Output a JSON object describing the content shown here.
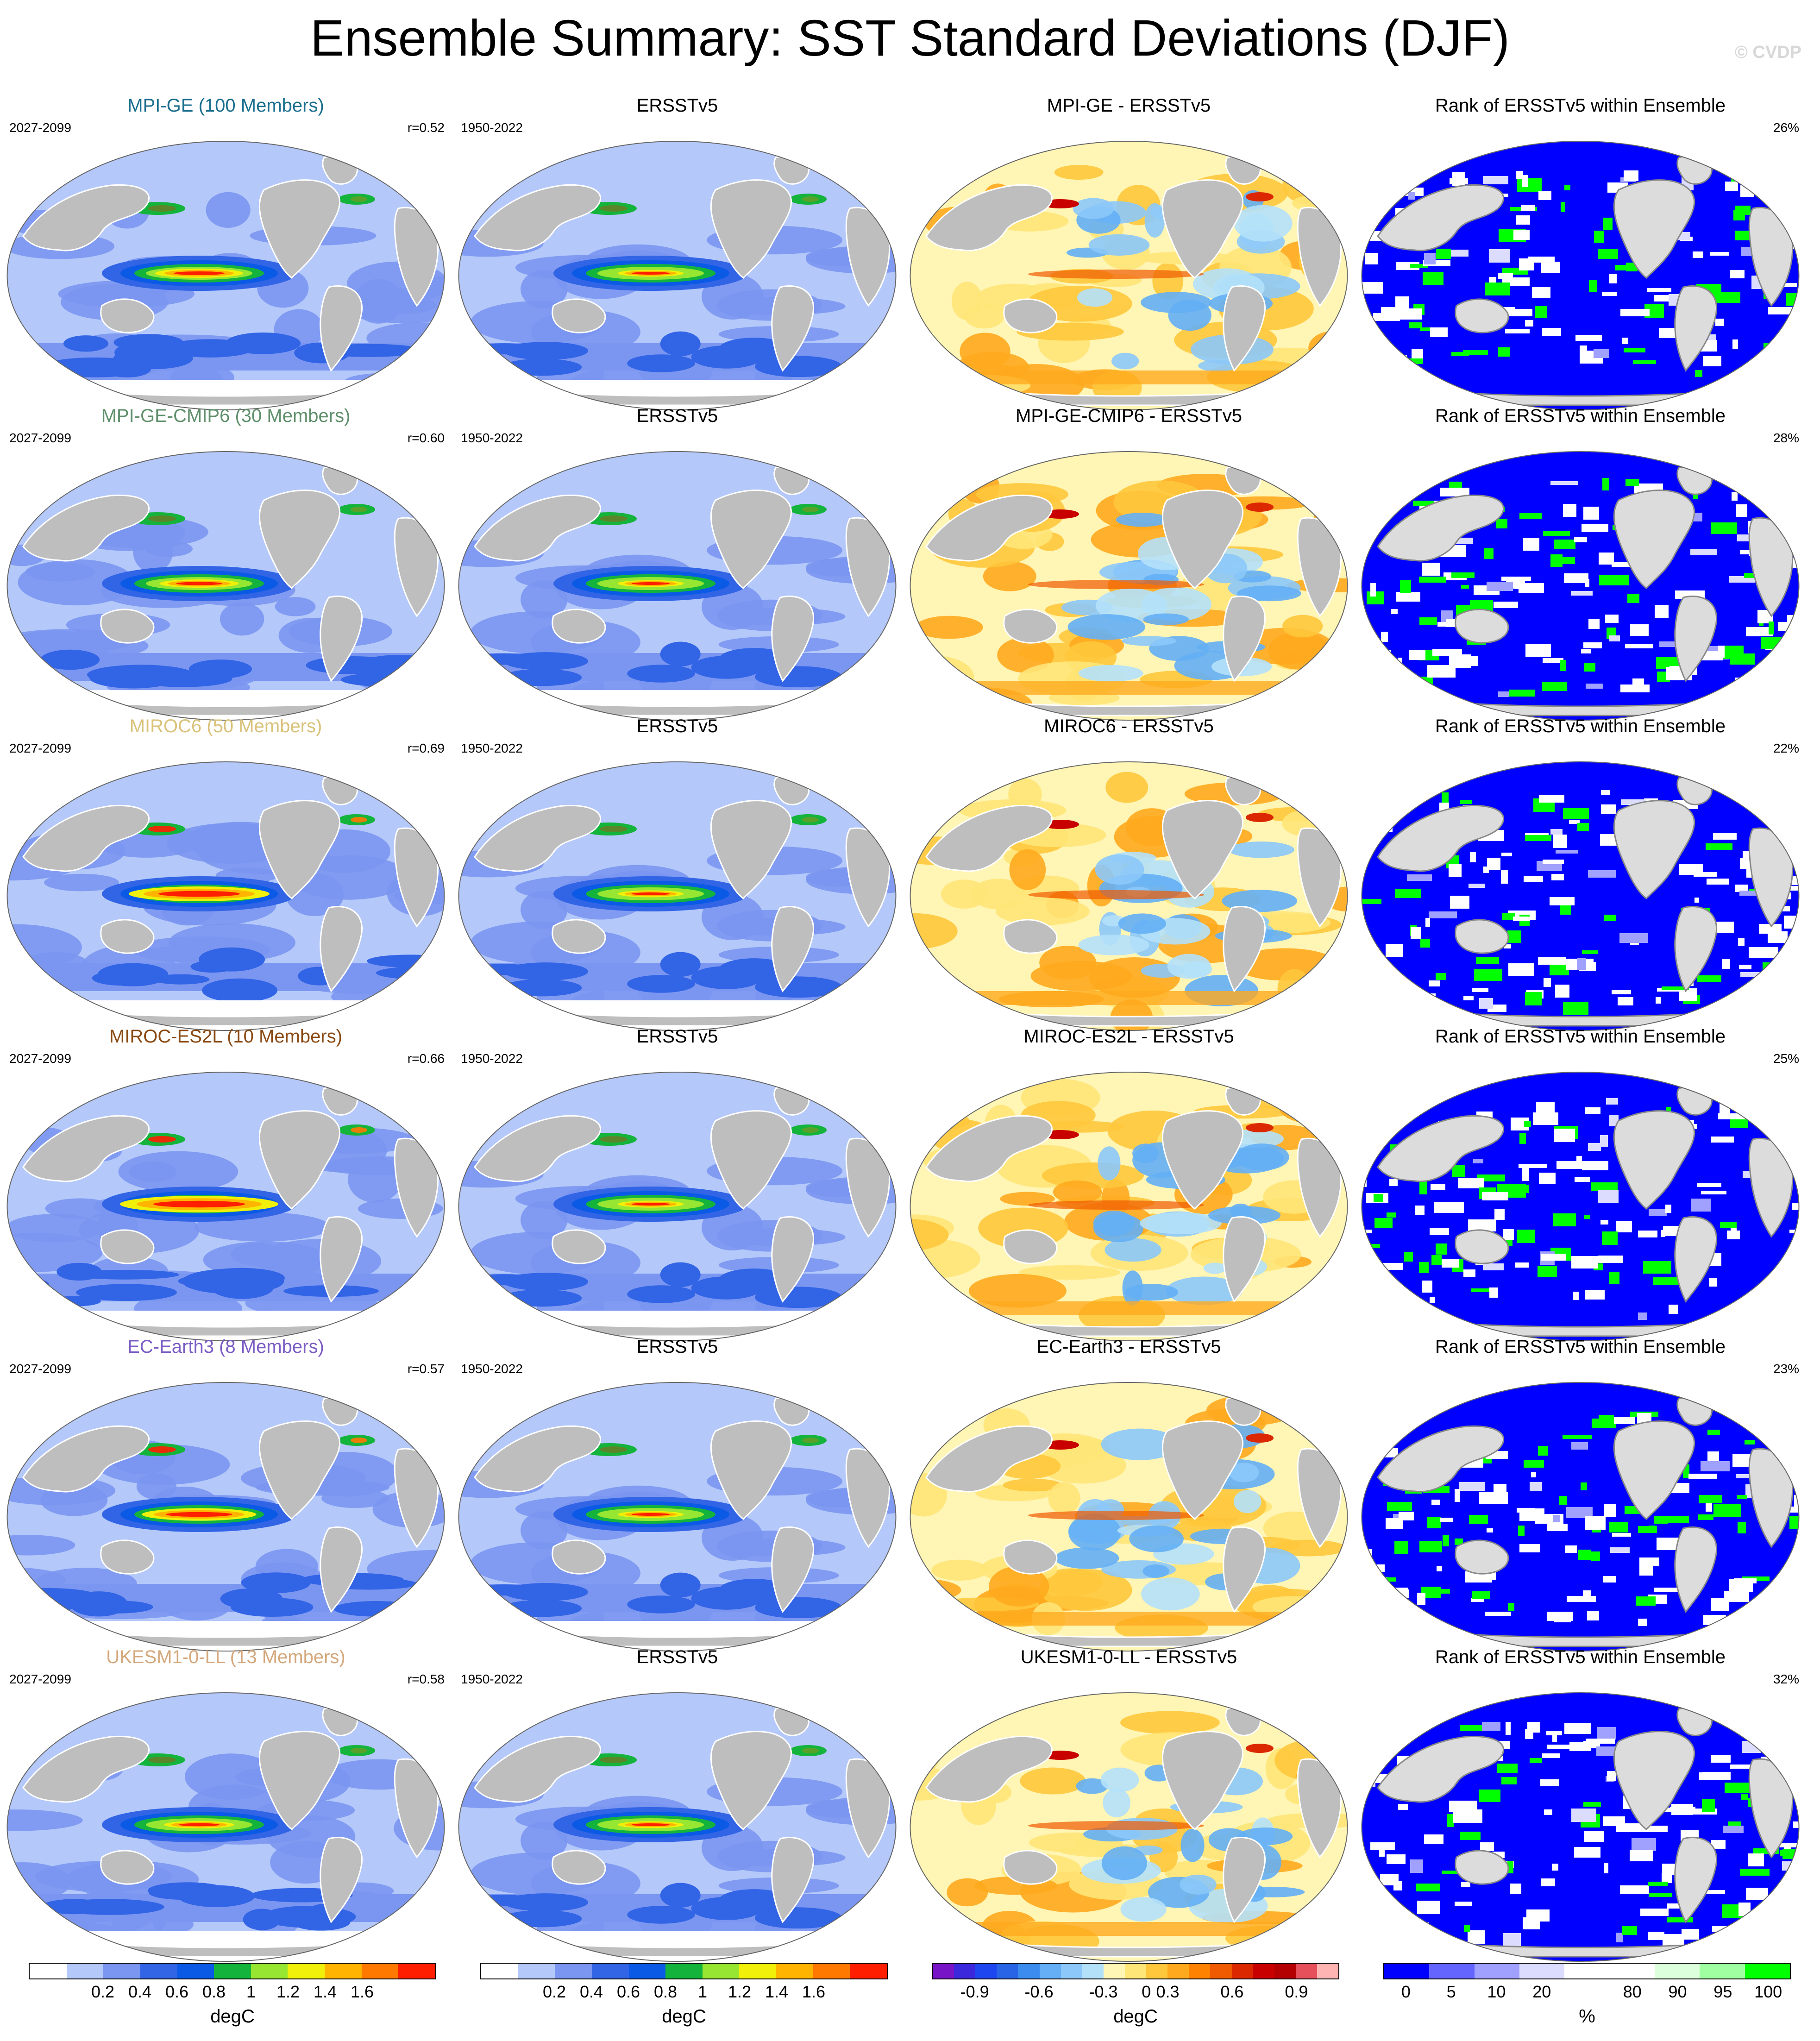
{
  "title": "Ensemble Summary: SST Standard Deviations (DJF)",
  "watermark": "© CVDP",
  "rows": [
    {
      "model_title": "MPI-GE (100 Members)",
      "model_color": "#1a6e8e",
      "model_period": "2027-2099",
      "r_value": "r=0.52",
      "obs_title": "ERSSTv5",
      "obs_period": "1950-2022",
      "diff_title": "MPI-GE - ERSSTv5",
      "rank_title": "Rank of ERSSTv5 within Ensemble",
      "rank_pct": "26%"
    },
    {
      "model_title": "MPI-GE-CMIP6 (30 Members)",
      "model_color": "#5f8f6b",
      "model_period": "2027-2099",
      "r_value": "r=0.60",
      "obs_title": "ERSSTv5",
      "obs_period": "1950-2022",
      "diff_title": "MPI-GE-CMIP6 - ERSSTv5",
      "rank_title": "Rank of ERSSTv5 within Ensemble",
      "rank_pct": "28%"
    },
    {
      "model_title": "MIROC6 (50 Members)",
      "model_color": "#d9c27a",
      "model_period": "2027-2099",
      "r_value": "r=0.69",
      "obs_title": "ERSSTv5",
      "obs_period": "1950-2022",
      "diff_title": "MIROC6 - ERSSTv5",
      "rank_title": "Rank of ERSSTv5 within Ensemble",
      "rank_pct": "22%"
    },
    {
      "model_title": "MIROC-ES2L (10 Members)",
      "model_color": "#8a4a14",
      "model_period": "2027-2099",
      "r_value": "r=0.66",
      "obs_title": "ERSSTv5",
      "obs_period": "1950-2022",
      "diff_title": "MIROC-ES2L - ERSSTv5",
      "rank_title": "Rank of ERSSTv5 within Ensemble",
      "rank_pct": "25%"
    },
    {
      "model_title": "EC-Earth3 (8 Members)",
      "model_color": "#7b5cc4",
      "model_period": "2027-2099",
      "r_value": "r=0.57",
      "obs_title": "ERSSTv5",
      "obs_period": "1950-2022",
      "diff_title": "EC-Earth3 - ERSSTv5",
      "rank_title": "Rank of ERSSTv5 within Ensemble",
      "rank_pct": "23%"
    },
    {
      "model_title": "UKESM1-0-LL (13 Members)",
      "model_color": "#d4a77b",
      "model_period": "2027-2099",
      "r_value": "r=0.58",
      "obs_title": "ERSSTv5",
      "obs_period": "1950-2022",
      "diff_title": "UKESM1-0-LL - ERSSTv5",
      "rank_title": "Rank of ERSSTv5 within Ensemble",
      "rank_pct": "32%"
    }
  ],
  "colorbars": [
    {
      "units": "degC",
      "ticks": [
        "0.2",
        "0.4",
        "0.6",
        "0.8",
        "1",
        "1.2",
        "1.4",
        "1.6"
      ],
      "colors": [
        "#ffffff",
        "#b4c8fa",
        "#7a96f0",
        "#3264e6",
        "#0a5ae6",
        "#14b43c",
        "#96e632",
        "#f0f00a",
        "#ffb400",
        "#ff7800",
        "#ff1e00"
      ]
    },
    {
      "units": "degC",
      "ticks": [
        "0.2",
        "0.4",
        "0.6",
        "0.8",
        "1",
        "1.2",
        "1.4",
        "1.6"
      ],
      "colors": [
        "#ffffff",
        "#b4c8fa",
        "#7a96f0",
        "#3264e6",
        "#0a5ae6",
        "#14b43c",
        "#96e632",
        "#f0f00a",
        "#ffb400",
        "#ff7800",
        "#ff1e00"
      ]
    },
    {
      "units": "degC",
      "ticks": [
        "-0.9",
        "-0.6",
        "-0.3",
        "0",
        "0.3",
        "0.6",
        "0.9"
      ],
      "colors": [
        "#7814c8",
        "#3c28dc",
        "#1e46f0",
        "#2864e6",
        "#3c8cf0",
        "#64aff5",
        "#8cc8fa",
        "#b4e1fa",
        "#fff5b4",
        "#ffe678",
        "#ffc83c",
        "#ffaa1e",
        "#ff8200",
        "#f05a00",
        "#dc2800",
        "#c80000",
        "#b40000",
        "#e6505a",
        "#ffb4b4"
      ]
    },
    {
      "units": "%",
      "ticks": [
        "0",
        "5",
        "10",
        "20",
        "80",
        "90",
        "95",
        "100"
      ],
      "colors": [
        "#0000ff",
        "#6464ff",
        "#a0a0ff",
        "#dcdcff",
        "#ffffff",
        "#ffffff",
        "#dcffdc",
        "#a0ffa0",
        "#00ff00"
      ]
    }
  ]
}
